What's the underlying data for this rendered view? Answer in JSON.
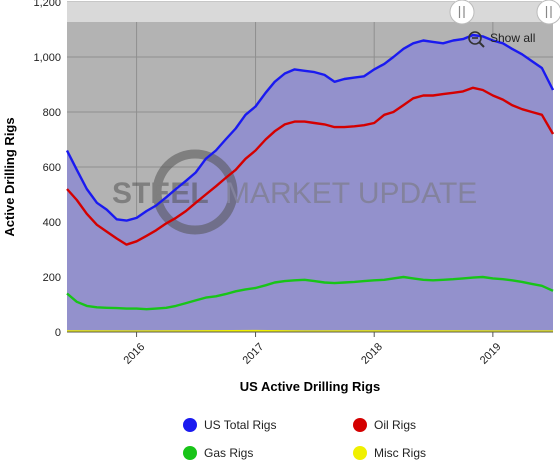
{
  "chart_data": {
    "type": "line",
    "title": "",
    "xlabel": "US Active Drilling Rigs",
    "ylabel": "Active Drilling Rigs",
    "ylim": [
      0,
      1200
    ],
    "yticks": [
      "0",
      "200",
      "400",
      "600",
      "800",
      "1,000",
      "1,200"
    ],
    "xlim": [
      "2015-06-01",
      "2019-07-05"
    ],
    "xticks": [
      {
        "date": "2016-01-01",
        "label": "2016"
      },
      {
        "date": "2017-01-01",
        "label": "2017"
      },
      {
        "date": "2018-01-01",
        "label": "2018"
      },
      {
        "date": "2019-01-01",
        "label": "2019"
      }
    ],
    "grid": true,
    "legend_position": "bottom",
    "series": [
      {
        "name": "US Total Rigs",
        "color": "#1a1af0",
        "points": [
          [
            "2015-06-01",
            660
          ],
          [
            "2015-07-01",
            590
          ],
          [
            "2015-08-01",
            520
          ],
          [
            "2015-09-01",
            470
          ],
          [
            "2015-10-01",
            445
          ],
          [
            "2015-11-01",
            410
          ],
          [
            "2015-12-01",
            405
          ],
          [
            "2016-01-01",
            415
          ],
          [
            "2016-02-01",
            440
          ],
          [
            "2016-03-01",
            460
          ],
          [
            "2016-04-01",
            490
          ],
          [
            "2016-05-01",
            520
          ],
          [
            "2016-06-01",
            550
          ],
          [
            "2016-07-01",
            580
          ],
          [
            "2016-08-01",
            630
          ],
          [
            "2016-09-01",
            660
          ],
          [
            "2016-10-01",
            700
          ],
          [
            "2016-11-01",
            740
          ],
          [
            "2016-12-01",
            790
          ],
          [
            "2017-01-01",
            820
          ],
          [
            "2017-02-01",
            870
          ],
          [
            "2017-03-01",
            910
          ],
          [
            "2017-04-01",
            940
          ],
          [
            "2017-05-01",
            955
          ],
          [
            "2017-06-01",
            950
          ],
          [
            "2017-07-01",
            945
          ],
          [
            "2017-08-01",
            935
          ],
          [
            "2017-09-01",
            910
          ],
          [
            "2017-10-01",
            920
          ],
          [
            "2017-11-01",
            925
          ],
          [
            "2017-12-01",
            930
          ],
          [
            "2018-01-01",
            955
          ],
          [
            "2018-02-01",
            975
          ],
          [
            "2018-03-01",
            1000
          ],
          [
            "2018-04-01",
            1030
          ],
          [
            "2018-05-01",
            1050
          ],
          [
            "2018-06-01",
            1060
          ],
          [
            "2018-07-01",
            1055
          ],
          [
            "2018-08-01",
            1050
          ],
          [
            "2018-09-01",
            1060
          ],
          [
            "2018-10-01",
            1065
          ],
          [
            "2018-11-01",
            1080
          ],
          [
            "2018-12-01",
            1075
          ],
          [
            "2019-01-01",
            1060
          ],
          [
            "2019-02-01",
            1050
          ],
          [
            "2019-03-01",
            1030
          ],
          [
            "2019-04-01",
            1010
          ],
          [
            "2019-05-01",
            985
          ],
          [
            "2019-06-01",
            960
          ],
          [
            "2019-07-05",
            880
          ]
        ]
      },
      {
        "name": "Oil Rigs",
        "color": "#d40000",
        "points": [
          [
            "2015-06-01",
            520
          ],
          [
            "2015-07-01",
            480
          ],
          [
            "2015-08-01",
            430
          ],
          [
            "2015-09-01",
            390
          ],
          [
            "2015-10-01",
            365
          ],
          [
            "2015-11-01",
            340
          ],
          [
            "2015-12-01",
            318
          ],
          [
            "2016-01-01",
            330
          ],
          [
            "2016-02-01",
            350
          ],
          [
            "2016-03-01",
            370
          ],
          [
            "2016-04-01",
            395
          ],
          [
            "2016-05-01",
            415
          ],
          [
            "2016-06-01",
            440
          ],
          [
            "2016-07-01",
            470
          ],
          [
            "2016-08-01",
            500
          ],
          [
            "2016-09-01",
            530
          ],
          [
            "2016-10-01",
            560
          ],
          [
            "2016-11-01",
            590
          ],
          [
            "2016-12-01",
            630
          ],
          [
            "2017-01-01",
            660
          ],
          [
            "2017-02-01",
            700
          ],
          [
            "2017-03-01",
            730
          ],
          [
            "2017-04-01",
            755
          ],
          [
            "2017-05-01",
            765
          ],
          [
            "2017-06-01",
            765
          ],
          [
            "2017-07-01",
            760
          ],
          [
            "2017-08-01",
            755
          ],
          [
            "2017-09-01",
            745
          ],
          [
            "2017-10-01",
            745
          ],
          [
            "2017-11-01",
            748
          ],
          [
            "2017-12-01",
            752
          ],
          [
            "2018-01-01",
            760
          ],
          [
            "2018-02-01",
            790
          ],
          [
            "2018-03-01",
            800
          ],
          [
            "2018-04-01",
            825
          ],
          [
            "2018-05-01",
            850
          ],
          [
            "2018-06-01",
            860
          ],
          [
            "2018-07-01",
            860
          ],
          [
            "2018-08-01",
            865
          ],
          [
            "2018-09-01",
            870
          ],
          [
            "2018-10-01",
            875
          ],
          [
            "2018-11-01",
            888
          ],
          [
            "2018-12-01",
            880
          ],
          [
            "2019-01-01",
            860
          ],
          [
            "2019-02-01",
            845
          ],
          [
            "2019-03-01",
            825
          ],
          [
            "2019-04-01",
            810
          ],
          [
            "2019-05-01",
            800
          ],
          [
            "2019-06-01",
            790
          ],
          [
            "2019-07-05",
            720
          ]
        ]
      },
      {
        "name": "Gas Rigs",
        "color": "#18c418",
        "points": [
          [
            "2015-06-01",
            140
          ],
          [
            "2015-07-01",
            110
          ],
          [
            "2015-08-01",
            95
          ],
          [
            "2015-09-01",
            90
          ],
          [
            "2015-10-01",
            88
          ],
          [
            "2015-11-01",
            87
          ],
          [
            "2015-12-01",
            85
          ],
          [
            "2016-01-01",
            85
          ],
          [
            "2016-02-01",
            83
          ],
          [
            "2016-03-01",
            85
          ],
          [
            "2016-04-01",
            88
          ],
          [
            "2016-05-01",
            95
          ],
          [
            "2016-06-01",
            105
          ],
          [
            "2016-07-01",
            115
          ],
          [
            "2016-08-01",
            125
          ],
          [
            "2016-09-01",
            130
          ],
          [
            "2016-10-01",
            138
          ],
          [
            "2016-11-01",
            148
          ],
          [
            "2016-12-01",
            155
          ],
          [
            "2017-01-01",
            160
          ],
          [
            "2017-02-01",
            170
          ],
          [
            "2017-03-01",
            180
          ],
          [
            "2017-04-01",
            185
          ],
          [
            "2017-05-01",
            188
          ],
          [
            "2017-06-01",
            190
          ],
          [
            "2017-07-01",
            185
          ],
          [
            "2017-08-01",
            180
          ],
          [
            "2017-09-01",
            178
          ],
          [
            "2017-10-01",
            180
          ],
          [
            "2017-11-01",
            182
          ],
          [
            "2017-12-01",
            185
          ],
          [
            "2018-01-01",
            188
          ],
          [
            "2018-02-01",
            190
          ],
          [
            "2018-03-01",
            195
          ],
          [
            "2018-04-01",
            200
          ],
          [
            "2018-05-01",
            195
          ],
          [
            "2018-06-01",
            190
          ],
          [
            "2018-07-01",
            188
          ],
          [
            "2018-08-01",
            190
          ],
          [
            "2018-09-01",
            192
          ],
          [
            "2018-10-01",
            195
          ],
          [
            "2018-11-01",
            198
          ],
          [
            "2018-12-01",
            200
          ],
          [
            "2019-01-01",
            195
          ],
          [
            "2019-02-01",
            192
          ],
          [
            "2019-03-01",
            188
          ],
          [
            "2019-04-01",
            182
          ],
          [
            "2019-05-01",
            175
          ],
          [
            "2019-06-01",
            168
          ],
          [
            "2019-07-05",
            150
          ]
        ]
      },
      {
        "name": "Misc Rigs",
        "color": "#f0f000",
        "points": [
          [
            "2015-06-01",
            3
          ],
          [
            "2016-01-01",
            2
          ],
          [
            "2016-06-01",
            3
          ],
          [
            "2017-01-01",
            4
          ],
          [
            "2017-06-01",
            2
          ],
          [
            "2018-01-01",
            3
          ],
          [
            "2018-06-01",
            3
          ],
          [
            "2019-01-01",
            2
          ],
          [
            "2019-07-05",
            2
          ]
        ]
      }
    ],
    "watermark": {
      "strong": "STEEL",
      "weak": "MARKET UPDATE"
    },
    "show_all_label": "Show all",
    "colors": {
      "background": "#b3b3b3",
      "fill": "#9391cc",
      "total": "#1a1af0",
      "oil": "#d40000",
      "gas": "#18c418",
      "misc": "#f0f000"
    }
  }
}
